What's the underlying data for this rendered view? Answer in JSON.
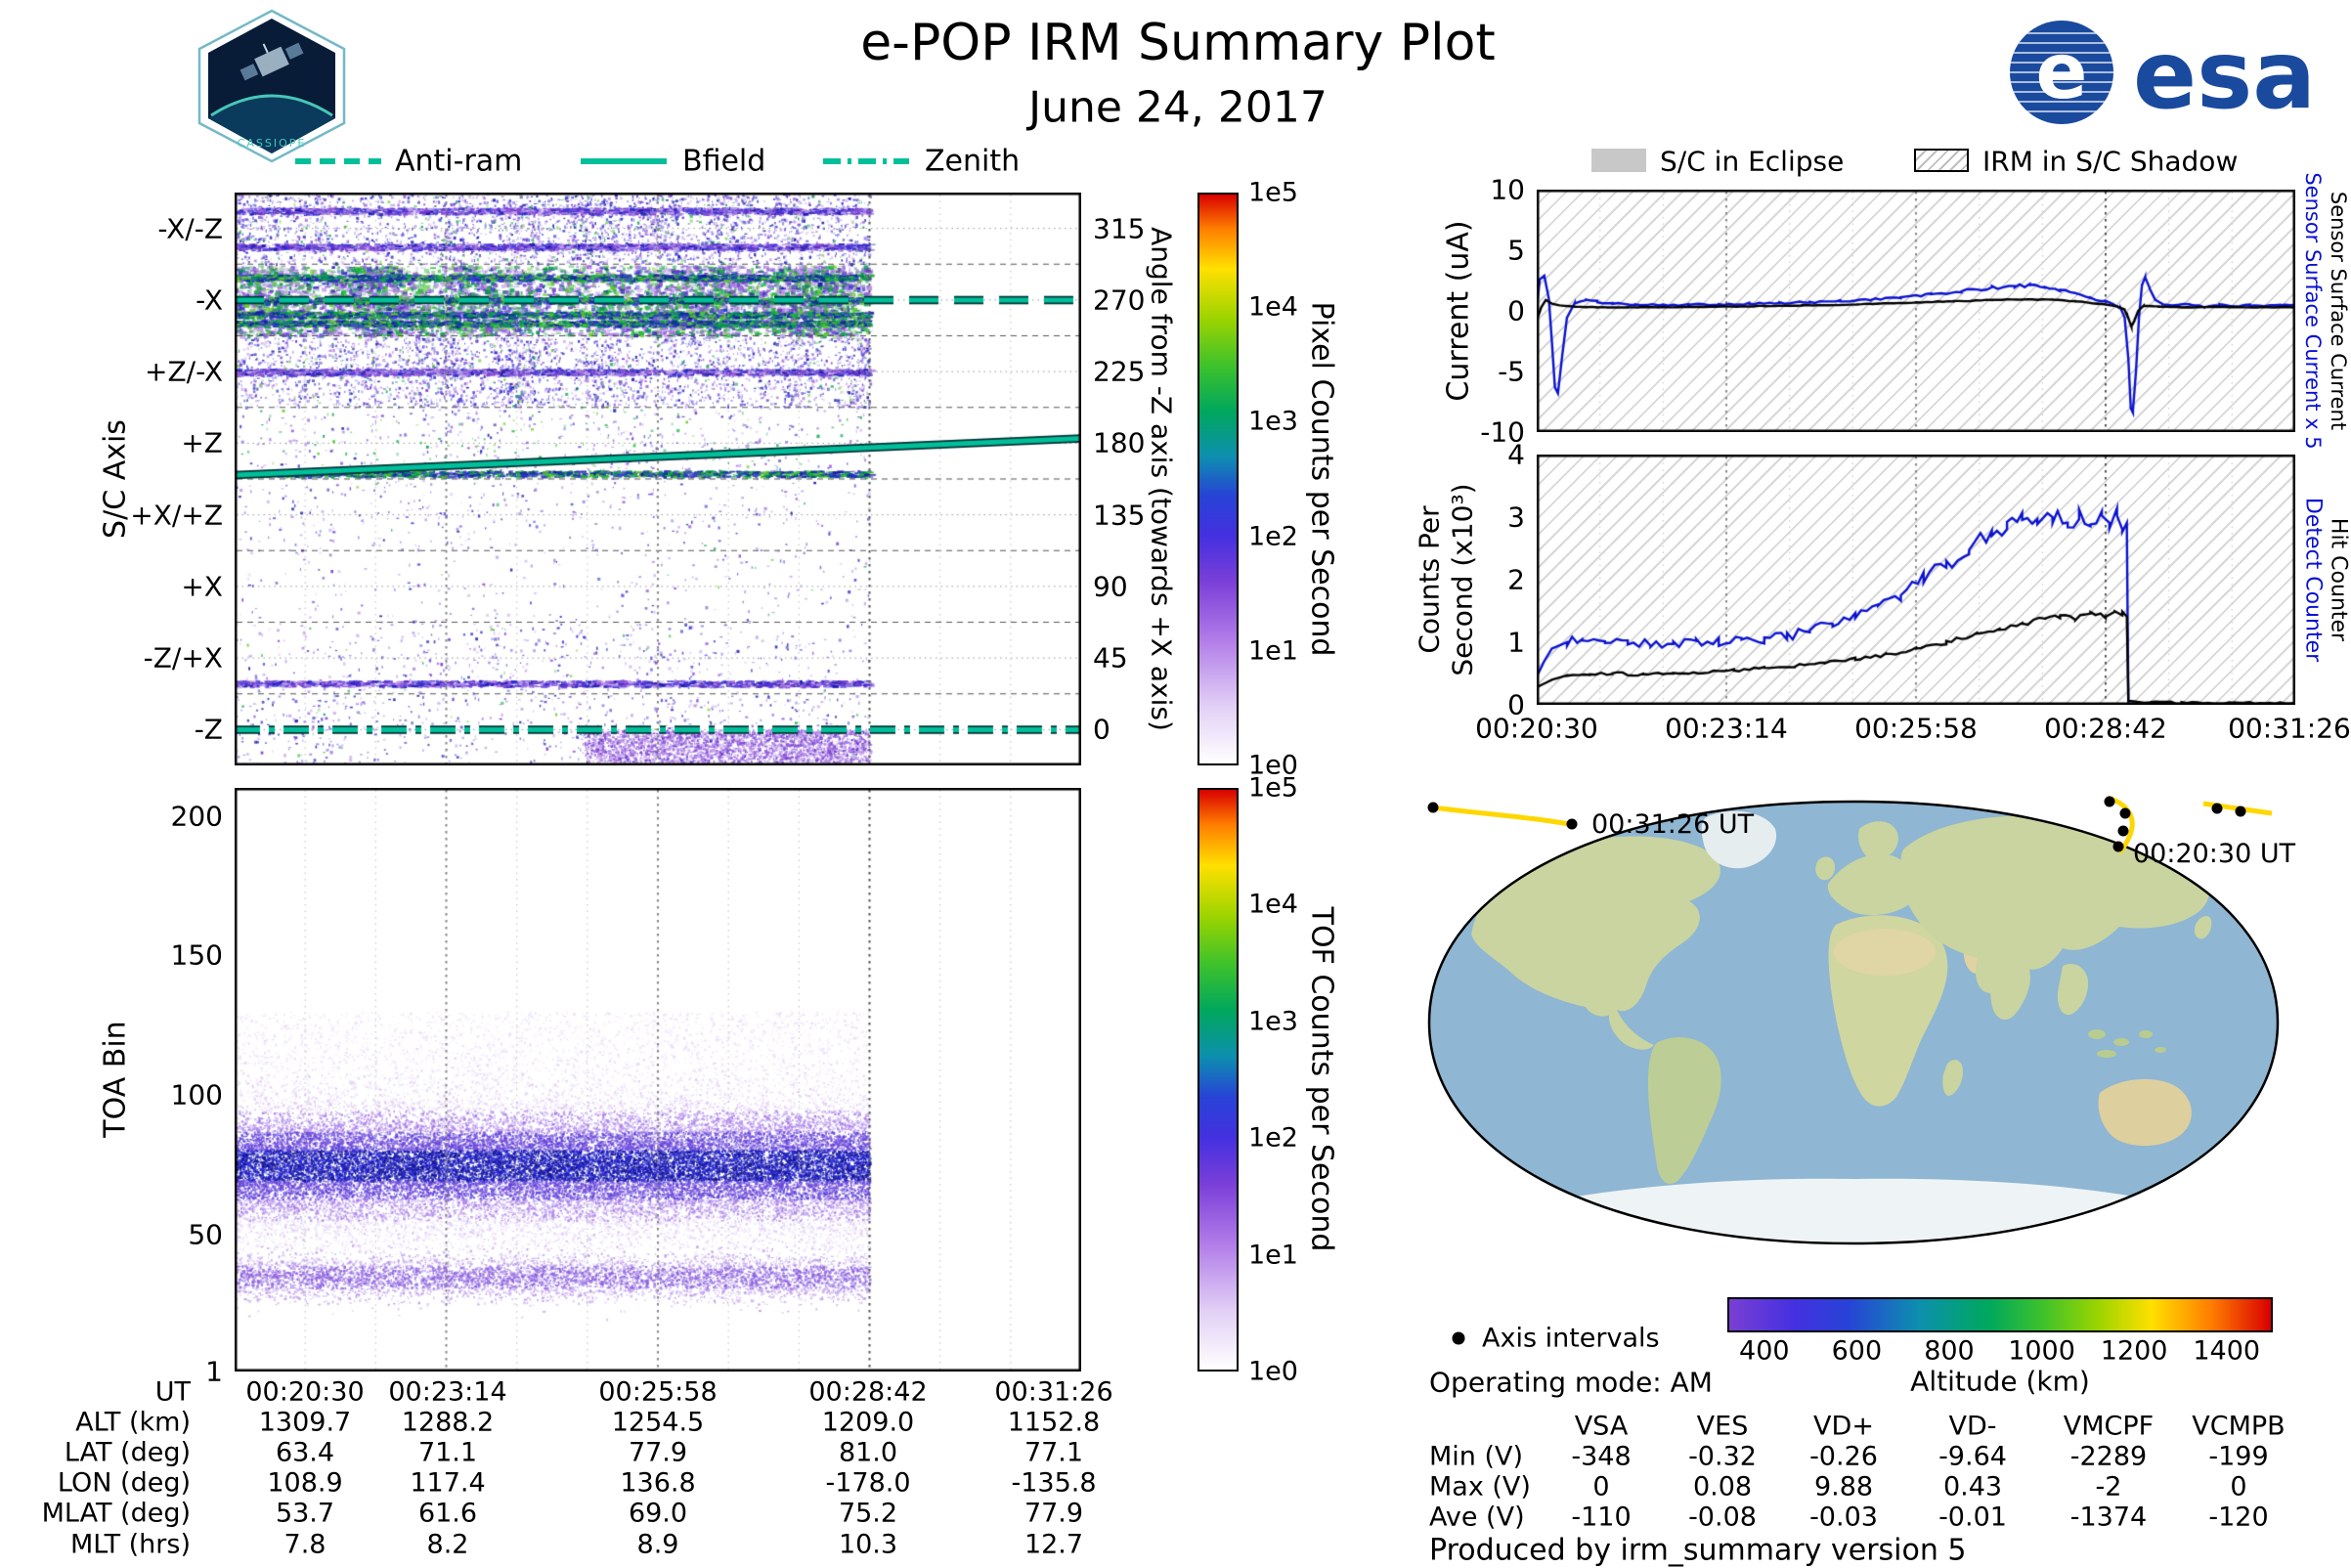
{
  "header": {
    "title": "e-POP IRM Summary Plot",
    "date": "June 24, 2017",
    "esa_text": "esa",
    "cassiope_text": "CASSIOPE"
  },
  "colors": {
    "accent_teal": "#00bf9a",
    "series_blue": "#0a12d0",
    "series_black": "#000000",
    "eclipse_gray": "#c8c8c8",
    "track_yellow": "#ffd700"
  },
  "overlay_legend": [
    {
      "label": "Anti-ram",
      "style": "dashed"
    },
    {
      "label": "Bfield",
      "style": "solid"
    },
    {
      "label": "Zenith",
      "style": "dashdot"
    }
  ],
  "shadow_legend": [
    {
      "label": "S/C in Eclipse",
      "type": "fill"
    },
    {
      "label": "IRM in S/C Shadow",
      "type": "hatch"
    }
  ],
  "time_ticks": [
    "00:20:30",
    "00:23:14",
    "00:25:58",
    "00:28:42",
    "00:31:26"
  ],
  "chart_data": [
    {
      "id": "sc_axis_spectrogram",
      "type": "heatmap",
      "ylabel": "S/C Axis",
      "y_categories": [
        "-X/-Z",
        "-X",
        "+Z/-X",
        "+Z",
        "+X/+Z",
        "+X",
        "-Z/+X",
        "-Z"
      ],
      "right_axis": {
        "label": "Angle from -Z axis (towards +X axis)",
        "ticks": [
          315,
          270,
          225,
          180,
          135,
          90,
          45,
          0
        ]
      },
      "x_ticks": [
        "00:20:30",
        "00:23:14",
        "00:25:58",
        "00:28:42",
        "00:31:26"
      ],
      "data_end_frac": 0.75,
      "colorbar": {
        "label": "Pixel Counts per Second",
        "ticks": [
          "1e5",
          "1e4",
          "1e3",
          "1e2",
          "1e1",
          "1e0"
        ]
      },
      "overlays": [
        {
          "name": "Anti-ram",
          "style": "dashed",
          "angle_deg": 270
        },
        {
          "name": "Bfield",
          "style": "solid",
          "angle_start_deg": 160,
          "angle_end_deg": 183
        },
        {
          "name": "Zenith",
          "style": "dashdot",
          "angle_deg": 0
        }
      ],
      "bands": [
        {
          "label": "-X/-Z",
          "density": 0.5,
          "green": 0.08,
          "stripes": [
            0.25,
            0.75
          ]
        },
        {
          "label": "-X",
          "density": 0.95,
          "green": 0.4,
          "stripes": [
            0.18,
            0.5,
            0.7,
            0.82
          ]
        },
        {
          "label": "+Z/-X",
          "density": 0.5,
          "green": 0.06,
          "stripes": [
            0.5
          ]
        },
        {
          "label": "+Z",
          "density": 0.1,
          "green": 0.3,
          "stripes": [
            0.92
          ]
        },
        {
          "label": "+X/+Z",
          "density": 0.06,
          "green": 0.02,
          "stripes": []
        },
        {
          "label": "+X",
          "density": 0.03,
          "green": 0.02,
          "stripes": []
        },
        {
          "label": "-Z/+X",
          "density": 0.08,
          "green": 0.03,
          "stripes": [
            0.85
          ]
        },
        {
          "label": "-Z",
          "density": 0.1,
          "green": 0.05,
          "stripes": [],
          "blob": [
            0.55,
            1.0,
            0.5,
            0.95
          ]
        }
      ]
    },
    {
      "id": "toa_spectrogram",
      "type": "heatmap",
      "ylabel": "TOA Bin",
      "ylim": [
        1,
        210
      ],
      "y_ticks": [
        1,
        50,
        100,
        150,
        200
      ],
      "x_ticks": [
        "00:20:30",
        "00:23:14",
        "00:25:58",
        "00:28:42",
        "00:31:26"
      ],
      "data_end_frac": 0.75,
      "colorbar": {
        "label": "TOF Counts per Second",
        "ticks": [
          "1e5",
          "1e4",
          "1e3",
          "1e2",
          "1e1",
          "1e0"
        ]
      },
      "bands": [
        {
          "center": 75,
          "sigma": 11,
          "weight": 1.0
        },
        {
          "center": 35,
          "sigma": 4,
          "weight": 0.22
        }
      ]
    },
    {
      "id": "sensor_current",
      "type": "line",
      "ylabel": "Current (uA)",
      "ylim": [
        -10,
        10
      ],
      "y_ticks": [
        10,
        5,
        0,
        -5,
        -10
      ],
      "right_labels": [
        {
          "text": "Sensor Surface Current x 5",
          "color": "#0a12d0"
        },
        {
          "text": "Sensor Surface Current",
          "color": "#000000"
        }
      ],
      "series": [
        {
          "name": "Sensor Surface Current x 5",
          "color": "#0a12d0",
          "jitter": 0.12,
          "points": [
            [
              0.0,
              0.2
            ],
            [
              0.004,
              2.6
            ],
            [
              0.01,
              2.9
            ],
            [
              0.016,
              1.0
            ],
            [
              0.02,
              -2.5
            ],
            [
              0.024,
              -6.3
            ],
            [
              0.028,
              -6.8
            ],
            [
              0.034,
              -3.5
            ],
            [
              0.04,
              -0.5
            ],
            [
              0.05,
              0.6
            ],
            [
              0.065,
              0.9
            ],
            [
              0.08,
              0.75
            ],
            [
              0.1,
              0.6
            ],
            [
              0.13,
              0.55
            ],
            [
              0.16,
              0.5
            ],
            [
              0.2,
              0.5
            ],
            [
              0.24,
              0.55
            ],
            [
              0.28,
              0.6
            ],
            [
              0.32,
              0.65
            ],
            [
              0.36,
              0.7
            ],
            [
              0.4,
              0.8
            ],
            [
              0.44,
              0.95
            ],
            [
              0.48,
              1.1
            ],
            [
              0.52,
              1.35
            ],
            [
              0.56,
              1.6
            ],
            [
              0.6,
              1.9
            ],
            [
              0.63,
              2.05
            ],
            [
              0.65,
              2.1
            ],
            [
              0.67,
              1.95
            ],
            [
              0.69,
              1.75
            ],
            [
              0.71,
              1.45
            ],
            [
              0.73,
              1.1
            ],
            [
              0.75,
              0.75
            ],
            [
              0.76,
              0.5
            ],
            [
              0.77,
              0.2
            ],
            [
              0.775,
              -0.5
            ],
            [
              0.78,
              -4.0
            ],
            [
              0.783,
              -7.8
            ],
            [
              0.786,
              -8.2
            ],
            [
              0.79,
              -5.0
            ],
            [
              0.794,
              -0.5
            ],
            [
              0.798,
              2.2
            ],
            [
              0.802,
              2.6
            ],
            [
              0.808,
              1.8
            ],
            [
              0.815,
              0.9
            ],
            [
              0.825,
              0.5
            ],
            [
              0.84,
              0.45
            ],
            [
              0.86,
              0.55
            ],
            [
              0.88,
              0.35
            ],
            [
              0.9,
              0.5
            ],
            [
              0.92,
              0.4
            ],
            [
              0.94,
              0.5
            ],
            [
              0.96,
              0.42
            ],
            [
              0.98,
              0.5
            ],
            [
              1.0,
              0.45
            ]
          ]
        },
        {
          "name": "Sensor Surface Current",
          "color": "#000000",
          "jitter": 0.04,
          "points": [
            [
              0.0,
              -0.8
            ],
            [
              0.006,
              0.3
            ],
            [
              0.012,
              0.9
            ],
            [
              0.02,
              0.6
            ],
            [
              0.03,
              0.45
            ],
            [
              0.05,
              0.35
            ],
            [
              0.08,
              0.3
            ],
            [
              0.12,
              0.3
            ],
            [
              0.16,
              0.3
            ],
            [
              0.2,
              0.32
            ],
            [
              0.25,
              0.35
            ],
            [
              0.3,
              0.4
            ],
            [
              0.35,
              0.45
            ],
            [
              0.4,
              0.5
            ],
            [
              0.45,
              0.6
            ],
            [
              0.5,
              0.7
            ],
            [
              0.55,
              0.8
            ],
            [
              0.6,
              0.9
            ],
            [
              0.64,
              0.95
            ],
            [
              0.68,
              0.9
            ],
            [
              0.71,
              0.8
            ],
            [
              0.74,
              0.6
            ],
            [
              0.765,
              0.4
            ],
            [
              0.775,
              0.1
            ],
            [
              0.78,
              -0.6
            ],
            [
              0.784,
              -1.3
            ],
            [
              0.788,
              -0.8
            ],
            [
              0.793,
              0.0
            ],
            [
              0.8,
              0.4
            ],
            [
              0.82,
              0.35
            ],
            [
              0.85,
              0.3
            ],
            [
              0.9,
              0.32
            ],
            [
              0.95,
              0.3
            ],
            [
              1.0,
              0.3
            ]
          ]
        }
      ]
    },
    {
      "id": "counters",
      "type": "line",
      "ylabel": "Counts Per Second (x10³)",
      "ylabel_lines": [
        "Counts Per",
        "Second (x10³)"
      ],
      "ylim": [
        0,
        4
      ],
      "y_ticks": [
        0,
        1,
        2,
        3,
        4
      ],
      "x_ticks": [
        "00:20:30",
        "00:23:14",
        "00:25:58",
        "00:28:42",
        "00:31:26"
      ],
      "right_labels": [
        {
          "text": "Detect Counter",
          "color": "#0a12d0"
        },
        {
          "text": "Hit Counter",
          "color": "#000000"
        }
      ],
      "series": [
        {
          "name": "Detect Counter",
          "color": "#0a12d0",
          "jitter": 0.09,
          "points": [
            [
              0.0,
              0.45
            ],
            [
              0.01,
              0.7
            ],
            [
              0.02,
              0.9
            ],
            [
              0.04,
              1.0
            ],
            [
              0.06,
              1.05
            ],
            [
              0.09,
              1.05
            ],
            [
              0.12,
              1.0
            ],
            [
              0.15,
              0.97
            ],
            [
              0.18,
              0.98
            ],
            [
              0.21,
              1.0
            ],
            [
              0.24,
              1.0
            ],
            [
              0.27,
              1.02
            ],
            [
              0.3,
              1.05
            ],
            [
              0.33,
              1.1
            ],
            [
              0.36,
              1.18
            ],
            [
              0.39,
              1.28
            ],
            [
              0.42,
              1.4
            ],
            [
              0.45,
              1.55
            ],
            [
              0.48,
              1.75
            ],
            [
              0.51,
              2.0
            ],
            [
              0.54,
              2.25
            ],
            [
              0.57,
              2.5
            ],
            [
              0.6,
              2.75
            ],
            [
              0.62,
              2.9
            ],
            [
              0.64,
              3.0
            ],
            [
              0.66,
              2.95
            ],
            [
              0.68,
              3.05
            ],
            [
              0.7,
              2.85
            ],
            [
              0.715,
              3.1
            ],
            [
              0.73,
              2.95
            ],
            [
              0.745,
              3.05
            ],
            [
              0.755,
              2.9
            ],
            [
              0.765,
              3.0
            ],
            [
              0.772,
              2.75
            ],
            [
              0.778,
              2.8
            ],
            [
              0.78,
              0.0
            ],
            [
              0.82,
              0.0
            ],
            [
              0.88,
              0.0
            ],
            [
              0.94,
              0.0
            ],
            [
              1.0,
              0.0
            ]
          ]
        },
        {
          "name": "Hit Counter",
          "color": "#000000",
          "jitter": 0.04,
          "points": [
            [
              0.0,
              0.28
            ],
            [
              0.02,
              0.4
            ],
            [
              0.04,
              0.47
            ],
            [
              0.07,
              0.5
            ],
            [
              0.1,
              0.5
            ],
            [
              0.14,
              0.48
            ],
            [
              0.18,
              0.5
            ],
            [
              0.22,
              0.52
            ],
            [
              0.26,
              0.55
            ],
            [
              0.3,
              0.58
            ],
            [
              0.34,
              0.62
            ],
            [
              0.38,
              0.67
            ],
            [
              0.42,
              0.73
            ],
            [
              0.46,
              0.8
            ],
            [
              0.5,
              0.9
            ],
            [
              0.54,
              1.0
            ],
            [
              0.58,
              1.12
            ],
            [
              0.61,
              1.22
            ],
            [
              0.64,
              1.3
            ],
            [
              0.67,
              1.38
            ],
            [
              0.69,
              1.42
            ],
            [
              0.71,
              1.38
            ],
            [
              0.73,
              1.48
            ],
            [
              0.75,
              1.42
            ],
            [
              0.762,
              1.52
            ],
            [
              0.772,
              1.45
            ],
            [
              0.778,
              1.4
            ],
            [
              0.78,
              0.05
            ],
            [
              0.85,
              0.03
            ],
            [
              0.92,
              0.03
            ],
            [
              1.0,
              0.03
            ]
          ]
        }
      ]
    },
    {
      "id": "ground_track_map",
      "type": "map",
      "annotations": [
        {
          "text": "00:31:26 UT"
        },
        {
          "text": "00:20:30 UT"
        }
      ]
    }
  ],
  "ephemeris_table": {
    "rows": [
      {
        "label": "UT",
        "values": [
          "00:20:30",
          "00:23:14",
          "00:25:58",
          "00:28:42",
          "00:31:26"
        ]
      },
      {
        "label": "ALT (km)",
        "values": [
          "1309.7",
          "1288.2",
          "1254.5",
          "1209.0",
          "1152.8"
        ]
      },
      {
        "label": "LAT (deg)",
        "values": [
          "63.4",
          "71.1",
          "77.9",
          "81.0",
          "77.1"
        ]
      },
      {
        "label": "LON (deg)",
        "values": [
          "108.9",
          "117.4",
          "136.8",
          "-178.0",
          "-135.8"
        ]
      },
      {
        "label": "MLAT (deg)",
        "values": [
          "53.7",
          "61.6",
          "69.0",
          "75.2",
          "77.9"
        ]
      },
      {
        "label": "MLT (hrs)",
        "values": [
          "7.8",
          "8.2",
          "8.9",
          "10.3",
          "12.7"
        ]
      }
    ]
  },
  "voltage_table": {
    "columns": [
      "VSA",
      "VES",
      "VD+",
      "VD-",
      "VMCPF",
      "VCMPB"
    ],
    "rows": [
      {
        "label": "Min (V)",
        "values": [
          "-348",
          "-0.32",
          "-0.26",
          "-9.64",
          "-2289",
          "-199"
        ]
      },
      {
        "label": "Max (V)",
        "values": [
          "0",
          "0.08",
          "9.88",
          "0.43",
          "-2",
          "0"
        ]
      },
      {
        "label": "Ave (V)",
        "values": [
          "-110",
          "-0.08",
          "-0.03",
          "-0.01",
          "-1374",
          "-120"
        ]
      }
    ]
  },
  "map": {
    "axis_intervals_label": "Axis intervals",
    "operating_mode": "Operating mode: AM",
    "altitude_colorbar": {
      "label": "Altitude (km)",
      "ticks": [
        400,
        600,
        800,
        1000,
        1200,
        1400
      ],
      "range": [
        320,
        1500
      ]
    }
  },
  "footer": "Produced by irm_summary version 5"
}
